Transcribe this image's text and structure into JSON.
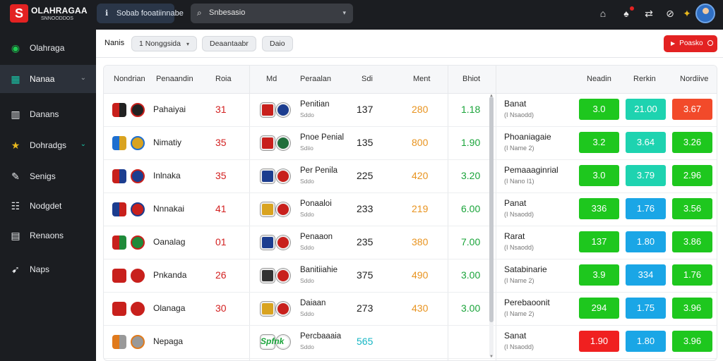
{
  "app": {
    "logo_title": "OLAHRAGAA",
    "logo_sub": "SNNOODDOS",
    "brand_color": "#e32222"
  },
  "topbar": {
    "button_label": "Sobab fooatiinnabe",
    "search_value": "Snbesasio",
    "icons": [
      "home-icon",
      "bell-icon",
      "share-icon",
      "flag-icon"
    ]
  },
  "sidebar": {
    "items": [
      {
        "label": "Olahraga",
        "icon": "soccer-ball-icon",
        "chevron": false
      },
      {
        "label": "Nanaa",
        "icon": "grid-icon",
        "chevron": true,
        "active": true
      },
      {
        "label": "Danans",
        "icon": "bars-icon",
        "chevron": false
      },
      {
        "label": "Dohradgs",
        "icon": "star-icon",
        "chevron": true
      },
      {
        "label": "Senigs",
        "icon": "pen-icon",
        "chevron": false
      },
      {
        "label": "Nodgdet",
        "icon": "list-icon",
        "chevron": false
      },
      {
        "label": "Renaons",
        "icon": "table-icon",
        "chevron": false
      },
      {
        "label": "Naps",
        "icon": "rocket-icon",
        "chevron": false
      }
    ]
  },
  "filters": {
    "label": "Nanis",
    "pills": [
      "1 Nonggsida",
      "Deaantaabr",
      "Daio"
    ],
    "cta_label": "Poasko"
  },
  "table": {
    "headers": [
      "Nondrian",
      "Penaandin",
      "Roia",
      "Md",
      "Peraalan",
      "Sdi",
      "Ment",
      "Bhiot",
      "Neadin",
      "Rerkin",
      "Nordiive"
    ],
    "rows": [
      {
        "team": "Pahaiyai",
        "val": "31",
        "match": "Penitian",
        "sub": "Sddo",
        "n1": "137",
        "n2": "280",
        "n3": "1.18",
        "c1": [
          "#c8201c",
          "#222"
        ],
        "c2": [
          "#c8201c",
          "#1c3d8f"
        ]
      },
      {
        "team": "Nimatiy",
        "val": "35",
        "match": "Pnoe Penial",
        "sub": "Sdiio",
        "n1": "135",
        "n2": "800",
        "n3": "1.90",
        "c1": [
          "#1e6fd0",
          "#d9a320"
        ],
        "c2": [
          "#c8201c",
          "#1f6e3a"
        ]
      },
      {
        "team": "Inlnaka",
        "val": "35",
        "match": "Per Penila",
        "sub": "Sddo",
        "n1": "225",
        "n2": "420",
        "n3": "3.20",
        "c1": [
          "#c8201c",
          "#1c3d8f"
        ],
        "c2": [
          "#1c3d8f",
          "#c8201c"
        ]
      },
      {
        "team": "Nnnakai",
        "val": "41",
        "match": "Ponaaloi",
        "sub": "Sddo",
        "n1": "233",
        "n2": "219",
        "n3": "6.00",
        "c1": [
          "#1c3d8f",
          "#c8201c"
        ],
        "c2": [
          "#d9a320",
          "#c8201c"
        ]
      },
      {
        "team": "Oanalag",
        "val": "01",
        "match": "Penaaon",
        "sub": "Sddo",
        "n1": "235",
        "n2": "380",
        "n3": "7.00",
        "c1": [
          "#c8201c",
          "#1f8a3a"
        ],
        "c2": [
          "#1c3d8f",
          "#c8201c"
        ]
      },
      {
        "team": "Pnkanda",
        "val": "26",
        "match": "Banitiiahie",
        "sub": "Sddo",
        "n1": "375",
        "n2": "490",
        "n3": "3.00",
        "c1": [
          "#c8201c",
          "#c8201c"
        ],
        "c2": [
          "#333",
          "#c8201c"
        ]
      },
      {
        "team": "Olanaga",
        "val": "30",
        "match": "Daiaan",
        "sub": "Sddo",
        "n1": "273",
        "n2": "430",
        "n3": "3.00",
        "c1": [
          "#c8201c",
          "#c8201c"
        ],
        "c2": [
          "#d9a320",
          "#c8201c"
        ]
      },
      {
        "team": "Nepaga",
        "val": "",
        "match": "Percbaaaia",
        "sub": "Sddo",
        "n1": "",
        "n2": "",
        "n3": "",
        "sgraph": "Spfnk",
        "cyan": "565",
        "c1": [
          "#e07a1c",
          "#999"
        ],
        "c2": [
          "#fff",
          "#fff"
        ]
      }
    ],
    "odds_rows": [
      {
        "name": "Banat",
        "sub": "(I Nsaodd)",
        "odds": [
          {
            "v": "3.0",
            "c": "#1ec71e"
          },
          {
            "v": "21.00",
            "c": "#1ed3b0"
          },
          {
            "v": "3.67",
            "c": "#f24a2a"
          }
        ]
      },
      {
        "name": "Phoaniagaie",
        "sub": "(I Name 2)",
        "odds": [
          {
            "v": "3.2",
            "c": "#1ec71e"
          },
          {
            "v": "3.64",
            "c": "#1ed3b0"
          },
          {
            "v": "3.26",
            "c": "#1ec71e"
          }
        ]
      },
      {
        "name": "Pemaaaginrial",
        "sub": "(I Nano I1)",
        "odds": [
          {
            "v": "3.0",
            "c": "#1ec71e"
          },
          {
            "v": "3.79",
            "c": "#1ed3b0"
          },
          {
            "v": "2.96",
            "c": "#1ec71e"
          }
        ]
      },
      {
        "name": "Panat",
        "sub": "(I Nsaodd)",
        "odds": [
          {
            "v": "336",
            "c": "#1ec71e"
          },
          {
            "v": "1.76",
            "c": "#1aa6e6"
          },
          {
            "v": "3.56",
            "c": "#1ec71e"
          }
        ]
      },
      {
        "name": "Rarat",
        "sub": "(I Nsaodd)",
        "odds": [
          {
            "v": "137",
            "c": "#1ec71e"
          },
          {
            "v": "1.80",
            "c": "#1aa6e6"
          },
          {
            "v": "3.86",
            "c": "#1ec71e"
          }
        ]
      },
      {
        "name": "Satabinarie",
        "sub": "(I Name 2)",
        "odds": [
          {
            "v": "3.9",
            "c": "#1ec71e"
          },
          {
            "v": "334",
            "c": "#1aa6e6"
          },
          {
            "v": "1.76",
            "c": "#1ec71e"
          }
        ]
      },
      {
        "name": "Perebaoonit",
        "sub": "(I Name 2)",
        "odds": [
          {
            "v": "294",
            "c": "#1ec71e"
          },
          {
            "v": "1.75",
            "c": "#1aa6e6"
          },
          {
            "v": "3.96",
            "c": "#1ec71e"
          }
        ]
      },
      {
        "name": "Sanat",
        "sub": "(I Nsaodd)",
        "odds": [
          {
            "v": "1.90",
            "c": "#f02020"
          },
          {
            "v": "1.80",
            "c": "#1aa6e6"
          },
          {
            "v": "3.96",
            "c": "#1ec71e"
          }
        ]
      }
    ]
  }
}
